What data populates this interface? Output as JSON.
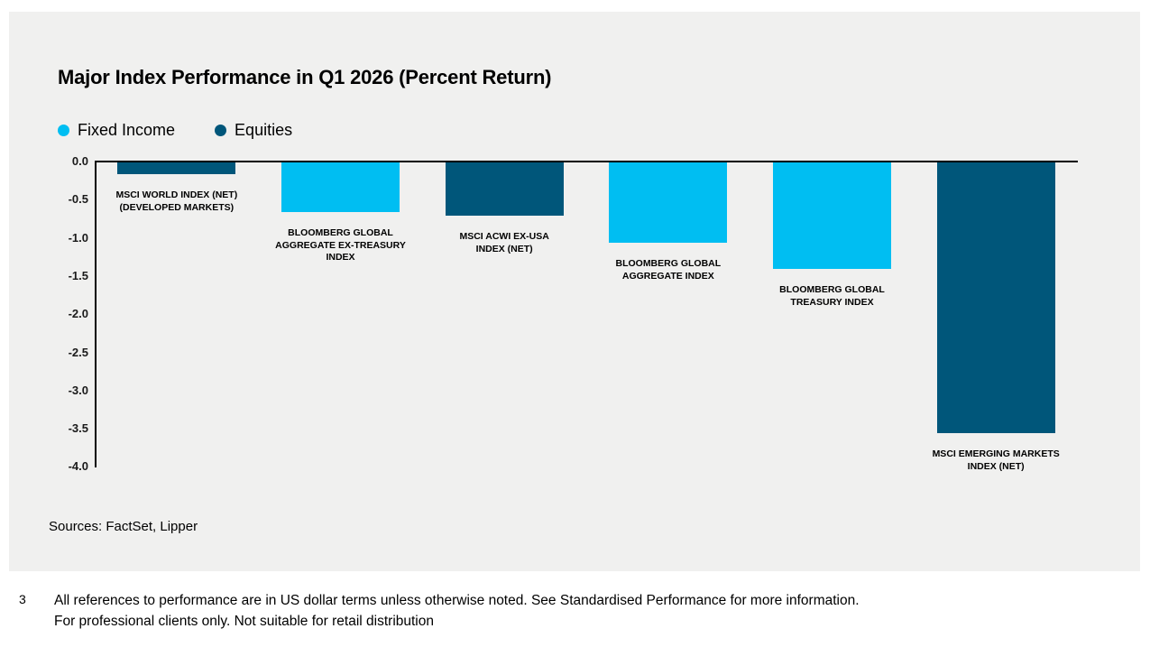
{
  "card": {
    "title": "Major Index Performance in Q1 2026 (Percent Return)",
    "legend": [
      {
        "label": "Fixed Income",
        "color": "#00bef2"
      },
      {
        "label": "Equities",
        "color": "#00567a"
      }
    ],
    "sources": "Sources: FactSet, Lipper"
  },
  "footer": {
    "page_number": "3",
    "line1": "All references to performance are in US dollar terms unless otherwise noted. See Standardised Performance for more information.",
    "line2": "For professional clients only. Not suitable for retail distribution"
  },
  "chart_data": {
    "type": "bar",
    "title": "Major Index Performance in Q1 2026 (Percent Return)",
    "xlabel": "",
    "ylabel": "",
    "ylim": [
      -4.0,
      0.0
    ],
    "ytick_labels": [
      "0.0",
      "-0.5",
      "-1.0",
      "-1.5",
      "-2.0",
      "-2.5",
      "-3.0",
      "-3.5",
      "-4.0"
    ],
    "grid": false,
    "legend_position": "top-left",
    "series": [
      {
        "name": "Fixed Income",
        "color": "#00bef2"
      },
      {
        "name": "Equities",
        "color": "#00567a"
      }
    ],
    "bars": [
      {
        "category": "MSCI World Index (Net) (Developed Markets)",
        "label_lines": [
          "MSCI WORLD INDEX (NET)",
          "(DEVELOPED MARKETS)"
        ],
        "series": "Equities",
        "value": -0.15
      },
      {
        "category": "Bloomberg Global Aggregate Ex-Treasury Index",
        "label_lines": [
          "BLOOMBERG GLOBAL",
          "AGGREGATE EX-TREASURY",
          "INDEX"
        ],
        "series": "Fixed Income",
        "value": -0.65
      },
      {
        "category": "MSCI ACWI ex-USA Index (Net)",
        "label_lines": [
          "MSCI ACWI EX-USA",
          "INDEX (NET)"
        ],
        "series": "Equities",
        "value": -0.7
      },
      {
        "category": "Bloomberg Global Aggregate Index",
        "label_lines": [
          "BLOOMBERG GLOBAL",
          "AGGREGATE INDEX"
        ],
        "series": "Fixed Income",
        "value": -1.05
      },
      {
        "category": "Bloomberg Global Treasury Index",
        "label_lines": [
          "BLOOMBERG GLOBAL",
          "TREASURY INDEX"
        ],
        "series": "Fixed Income",
        "value": -1.4
      },
      {
        "category": "MSCI Emerging Markets Index (Net)",
        "label_lines": [
          "MSCI EMERGING MARKETS",
          "INDEX (NET)"
        ],
        "series": "Equities",
        "value": -3.55
      }
    ]
  }
}
